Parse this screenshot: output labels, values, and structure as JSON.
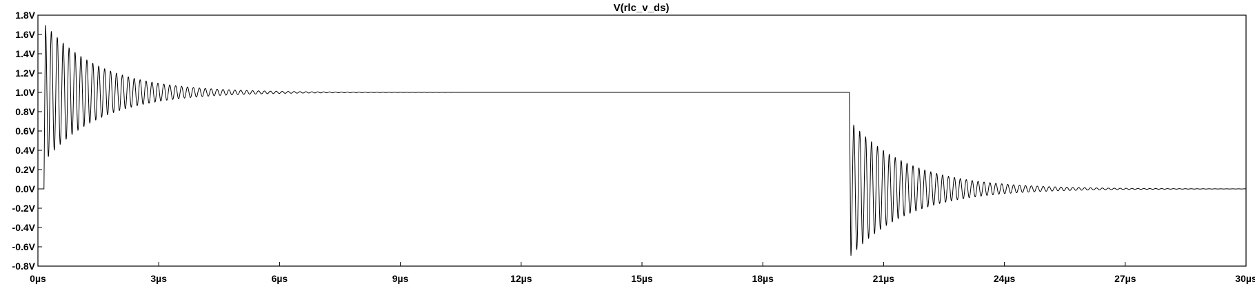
{
  "chart_data": {
    "type": "line",
    "title": "V(rlc_v_ds)",
    "xlabel": "",
    "ylabel": "",
    "x_unit": "µs",
    "y_unit": "V",
    "xlim": [
      0,
      30
    ],
    "ylim": [
      -0.8,
      1.8
    ],
    "x_ticks": [
      0,
      3,
      6,
      9,
      12,
      15,
      18,
      21,
      24,
      27,
      30
    ],
    "x_tick_labels": [
      "0µs",
      "3µs",
      "6µs",
      "9µs",
      "12µs",
      "15µs",
      "18µs",
      "21µs",
      "24µs",
      "27µs",
      "30µs"
    ],
    "y_ticks": [
      1.8,
      1.6,
      1.4,
      1.2,
      1.0,
      0.8,
      0.6,
      0.4,
      0.2,
      0.0,
      -0.2,
      -0.4,
      -0.6,
      -0.8
    ],
    "y_tick_labels": [
      "1.8V",
      "1.6V",
      "1.4V",
      "1.2V",
      "1.0V",
      "0.8V",
      "0.6V",
      "0.4V",
      "0.2V",
      "0.0V",
      "-0.2V",
      "-0.4V",
      "-0.6V",
      "-0.8V"
    ],
    "grid": false,
    "line_color": "#000000",
    "series": [
      {
        "name": "",
        "segments": [
          {
            "kind": "flat",
            "t_start": 0.0,
            "t_end": 0.15,
            "level": 0.0
          },
          {
            "kind": "damped_ringing",
            "t_start": 0.15,
            "t_end": 20.15,
            "settle_level": 1.0,
            "first_peak": 1.71,
            "first_trough": 0.31,
            "ringing_period": 0.147,
            "decay_time_constant": 1.4,
            "visible_until": 8.0
          },
          {
            "kind": "damped_ringing",
            "t_start": 20.15,
            "t_end": 30.0,
            "settle_level": 0.0,
            "first_peak": 0.67,
            "first_trough": -0.72,
            "ringing_period": 0.147,
            "decay_time_constant": 1.45,
            "visible_until": 26.5
          }
        ],
        "points": [
          {
            "x": 0.0,
            "y": 0.0
          },
          {
            "x": 0.15,
            "y": 0.0
          },
          {
            "x": 0.21,
            "y": 1.71
          },
          {
            "x": 0.29,
            "y": 0.31
          },
          {
            "x": 0.5,
            "y": 1.55
          },
          {
            "x": 1.0,
            "y": 0.68
          },
          {
            "x": 1.5,
            "y": 1.27
          },
          {
            "x": 2.0,
            "y": 0.83
          },
          {
            "x": 3.0,
            "y": 1.08
          },
          {
            "x": 4.0,
            "y": 1.03
          },
          {
            "x": 6.0,
            "y": 1.0
          },
          {
            "x": 8.0,
            "y": 1.0
          },
          {
            "x": 20.15,
            "y": 1.0
          },
          {
            "x": 20.3,
            "y": -0.72
          },
          {
            "x": 20.45,
            "y": 0.67
          },
          {
            "x": 21.0,
            "y": -0.45
          },
          {
            "x": 21.5,
            "y": 0.3
          },
          {
            "x": 22.0,
            "y": -0.2
          },
          {
            "x": 23.0,
            "y": 0.07
          },
          {
            "x": 24.0,
            "y": 0.03
          },
          {
            "x": 26.5,
            "y": 0.0
          },
          {
            "x": 30.0,
            "y": 0.0
          }
        ]
      }
    ]
  }
}
